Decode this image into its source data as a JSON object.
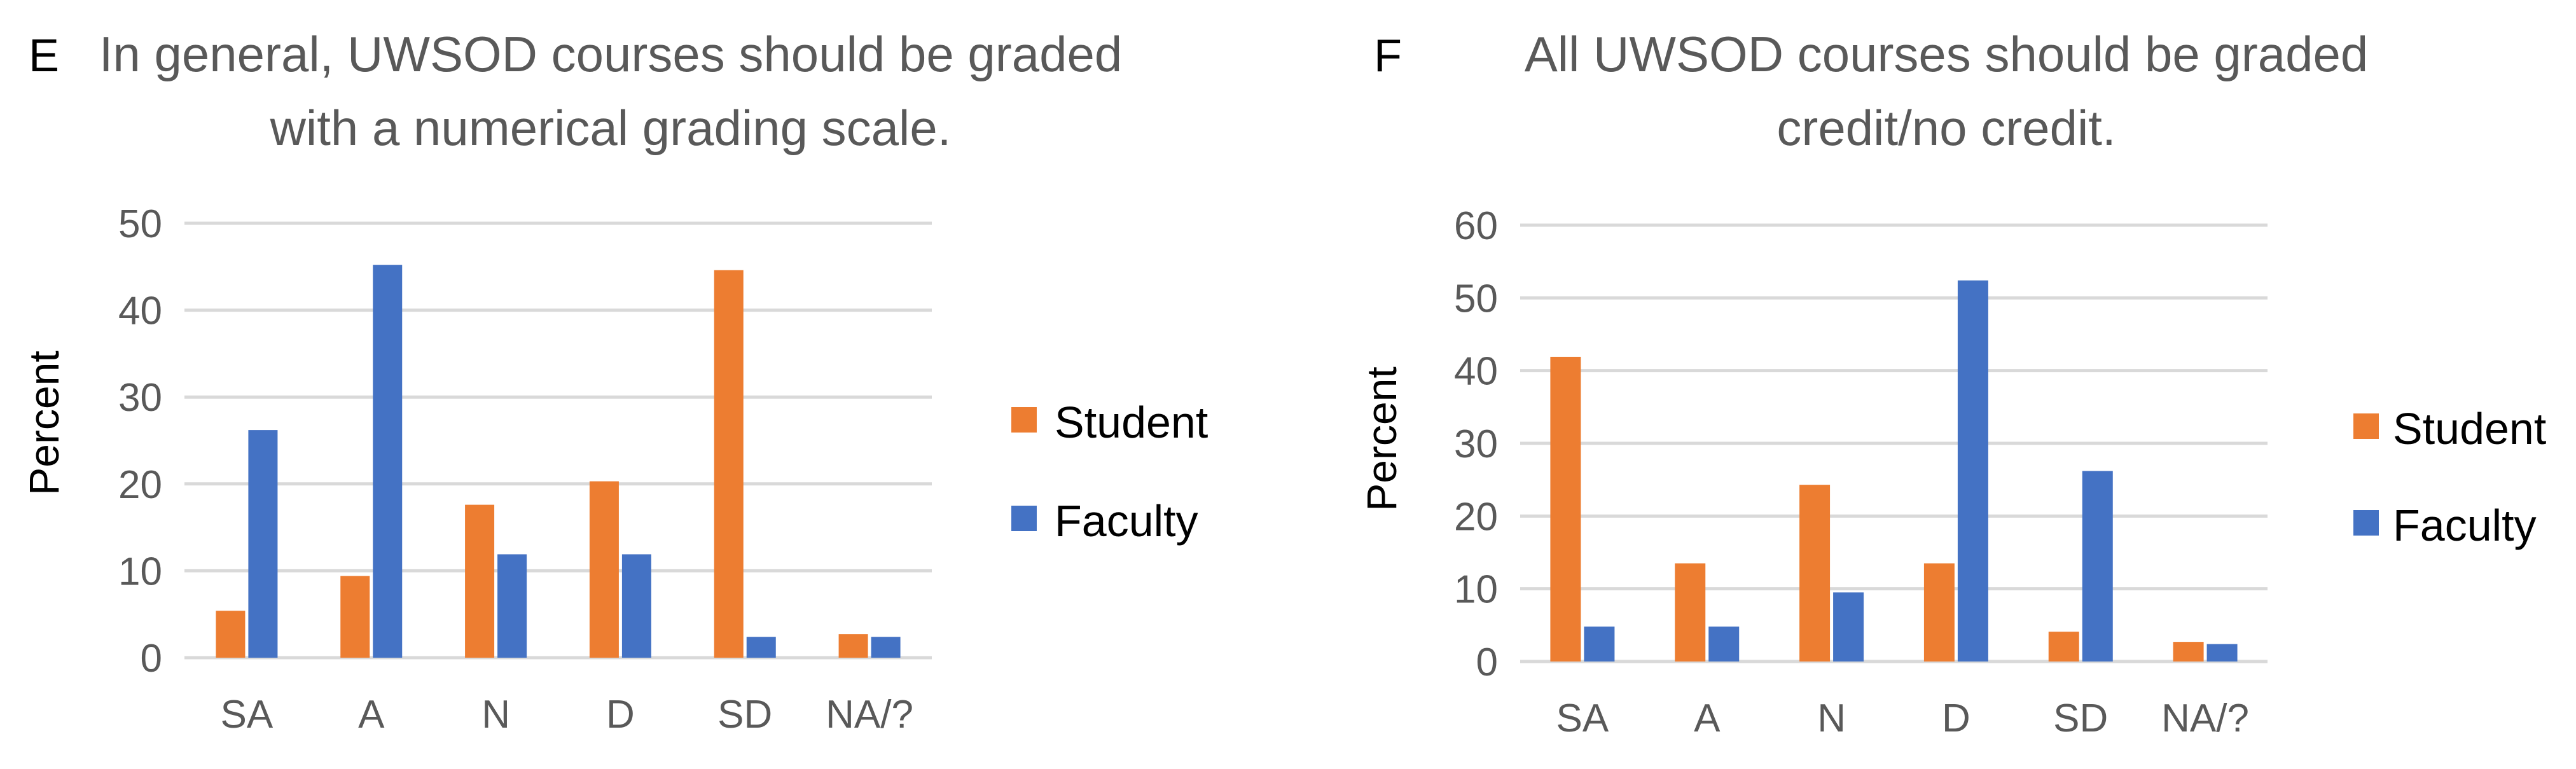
{
  "colors": {
    "student": "#ED7D31",
    "faculty": "#4472C4"
  },
  "chart_data": [
    {
      "type": "bar",
      "panel_label": "E",
      "title_lines": [
        "In general, UWSOD courses should be graded",
        "with a numerical grading scale."
      ],
      "ylabel": "Percent",
      "xlabel": "",
      "ylim": [
        0,
        50
      ],
      "yticks": [
        "0",
        "10",
        "20",
        "30",
        "40",
        "50"
      ],
      "grid": true,
      "legend": "right",
      "categories": [
        "SA",
        "A",
        "N",
        "D",
        "SD",
        "NA/?"
      ],
      "series": [
        {
          "name": "Student",
          "color": "#ED7D31",
          "values": [
            5.4,
            9.4,
            17.6,
            20.3,
            44.6,
            2.7
          ]
        },
        {
          "name": "Faculty",
          "color": "#4472C4",
          "values": [
            26.2,
            45.2,
            11.9,
            11.9,
            2.4,
            2.4
          ]
        }
      ]
    },
    {
      "type": "bar",
      "panel_label": "F",
      "title_lines": [
        "All UWSOD courses should be graded",
        "credit/no credit."
      ],
      "ylabel": "Percent",
      "xlabel": "",
      "ylim": [
        0,
        60
      ],
      "yticks": [
        "0",
        "10",
        "20",
        "30",
        "40",
        "50",
        "60"
      ],
      "grid": true,
      "legend": "right",
      "categories": [
        "SA",
        "A",
        "N",
        "D",
        "SD",
        "NA/?"
      ],
      "series": [
        {
          "name": "Student",
          "color": "#ED7D31",
          "values": [
            41.9,
            13.5,
            24.3,
            13.5,
            4.1,
            2.7
          ]
        },
        {
          "name": "Faculty",
          "color": "#4472C4",
          "values": [
            4.8,
            4.8,
            9.5,
            52.4,
            26.2,
            2.4
          ]
        }
      ]
    }
  ]
}
